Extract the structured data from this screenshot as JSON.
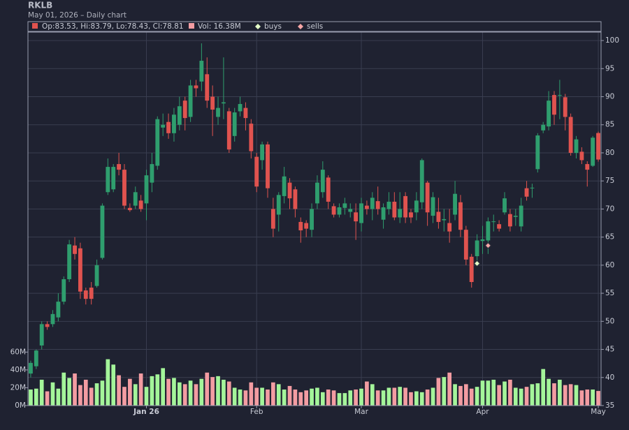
{
  "chart_data": {
    "type": "candlestick",
    "title": "RKLB",
    "subtitle": "May 01, 2026 – Daily chart",
    "legend": {
      "ohlc": "Op:83.53, Hi:83.79, Lo:78.43, Cl:78.81",
      "volume": "Vol: 16.38M",
      "buys": "buys",
      "sells": "sells"
    },
    "colors": {
      "up": "#2f9e6e",
      "down": "#e0534f",
      "volume_up": "#a4f59a",
      "volume_down": "#f39ca2",
      "buys": "#e4ffc8",
      "sells": "#f7a6a6"
    },
    "open": [
      40.7,
      42,
      45.7,
      49.5,
      49.5,
      50.7,
      53.5,
      57.5,
      63.5,
      63,
      55.5,
      56,
      56.3,
      61.3,
      73,
      73.5,
      78,
      77,
      70.2,
      70.6,
      71.5,
      71,
      74.7,
      77.7,
      84.5,
      85.5,
      83.5,
      85,
      89.3,
      86.4,
      92,
      92.7,
      94,
      90,
      86.4,
      88.8,
      87.4,
      83,
      87.4,
      88,
      85.2,
      79.3,
      78.7,
      81.5,
      70,
      69,
      72.3,
      74.7,
      73.5,
      67.7,
      67.5,
      66.3,
      71,
      73,
      75.6,
      70.5,
      69,
      70.2,
      69.5,
      69.4,
      67.5,
      70.6,
      70,
      71.4,
      68.1,
      70,
      71.3,
      68.5,
      72.3,
      69.4,
      69.4,
      71.2,
      74.7,
      68.8,
      69.5,
      68,
      67.5,
      69,
      71.2,
      66.3,
      61.5,
      61.6,
      64.3,
      64.4,
      67.7,
      67.3,
      69.4,
      69.1,
      68.6,
      66.9,
      73.7,
      73.7,
      77.1,
      84,
      84.7,
      90.3,
      90.2,
      89.9,
      86.4,
      80,
      80.2,
      78,
      77.7,
      83.53
    ],
    "high": [
      43,
      45,
      50,
      50,
      52,
      55,
      58,
      64.5,
      65,
      64,
      56,
      57,
      61,
      71,
      79,
      78,
      80,
      78,
      71,
      74,
      72.5,
      77,
      80,
      86.5,
      87,
      87,
      88,
      90,
      90,
      93,
      93,
      99.5,
      97,
      92,
      90,
      97,
      88,
      88,
      90,
      89,
      86,
      80,
      82,
      82,
      72,
      73,
      77.5,
      75.5,
      74,
      68.5,
      68,
      71,
      76,
      78.5,
      76,
      71,
      71,
      72,
      71,
      71,
      72,
      71.5,
      73,
      74,
      71,
      73,
      73,
      73,
      73,
      70,
      73,
      79,
      75,
      73,
      72,
      70,
      70,
      75,
      72.5,
      67,
      62,
      65.5,
      67,
      68.5,
      69,
      68,
      73,
      70,
      70,
      72,
      75,
      74.5,
      83.5,
      85.5,
      91,
      91,
      93,
      90.5,
      87,
      83,
      81,
      78.5,
      83,
      83.79
    ],
    "low": [
      40,
      41.5,
      45,
      48.5,
      49,
      50,
      53,
      57,
      61,
      54,
      53,
      53,
      56,
      61,
      72.5,
      73,
      76,
      70,
      69.5,
      70,
      69.5,
      68,
      73,
      77,
      83,
      82.5,
      82,
      84,
      84,
      85.5,
      90,
      91,
      88,
      83,
      85,
      86,
      80,
      82,
      86.5,
      84,
      79,
      73,
      77,
      72,
      65,
      66,
      71,
      70,
      68.5,
      64,
      65,
      65,
      70,
      72,
      70,
      68.5,
      68.5,
      69,
      68.5,
      64.5,
      66,
      69,
      68,
      69,
      66.5,
      69,
      68,
      67.5,
      67.5,
      67.5,
      68,
      70,
      67,
      67.5,
      66.5,
      66,
      64,
      68,
      65,
      60,
      56,
      60.5,
      62,
      62,
      66,
      66,
      69,
      66,
      67,
      66,
      71.5,
      72,
      76.5,
      83.5,
      84,
      85,
      86,
      84,
      79.5,
      79,
      78,
      74,
      77.5,
      78.43
    ],
    "close": [
      42.6,
      44.8,
      49.5,
      49,
      51.3,
      53.5,
      57.5,
      63.7,
      62,
      55.3,
      54,
      54,
      60,
      70.6,
      77.5,
      77.5,
      77,
      70.6,
      69.8,
      73,
      70,
      76,
      78,
      86,
      85,
      83.5,
      86.8,
      88.3,
      86.2,
      92,
      91.5,
      96.4,
      89.3,
      87.7,
      88,
      89,
      80.6,
      87.2,
      88.7,
      86.2,
      80.3,
      74,
      81.5,
      73.7,
      66.5,
      72.5,
      75.8,
      71.9,
      70,
      66.2,
      66.5,
      70,
      74.7,
      77,
      71.3,
      69,
      70.3,
      71,
      70,
      67.8,
      71,
      70,
      72,
      70,
      70.3,
      71.3,
      68.5,
      70,
      68.5,
      68.5,
      71.5,
      78.7,
      69.4,
      72.1,
      67.7,
      68.2,
      66,
      72.7,
      66.3,
      61,
      57,
      64.4,
      64.6,
      67.8,
      67.8,
      66.5,
      71.9,
      66.9,
      68.8,
      70.6,
      72.2,
      73.8,
      83.1,
      85,
      89.3,
      86.8,
      90.3,
      86.4,
      80,
      82.4,
      78.7,
      77,
      82.7,
      78.81
    ],
    "volume": [
      18,
      19,
      29,
      16,
      26,
      19,
      37,
      31,
      36,
      23,
      29,
      20,
      25,
      28,
      52,
      46,
      34,
      21,
      30,
      24,
      36,
      21,
      33,
      35,
      42,
      30,
      31,
      26,
      24,
      28,
      24,
      30,
      37,
      32,
      33,
      29,
      27,
      20,
      18,
      17,
      26,
      20,
      20,
      18,
      26,
      24,
      18,
      22,
      18,
      15,
      17,
      19,
      20,
      15,
      18,
      17,
      14,
      14,
      17,
      18,
      19,
      27,
      24,
      17,
      17,
      20,
      20,
      21,
      20,
      15,
      16,
      15,
      18,
      20,
      31,
      32,
      37,
      24,
      22,
      24,
      19,
      21,
      28,
      28,
      29,
      23,
      27,
      29,
      20,
      19,
      21,
      24,
      25,
      41,
      30,
      25,
      29,
      23,
      24,
      23,
      17,
      18,
      18,
      16.38
    ],
    "buys": [
      {
        "index": 81,
        "value": 60.3
      }
    ],
    "sells": [
      {
        "index": 83,
        "value": 63.5
      }
    ],
    "xlim": [
      -0.5,
      103.5
    ],
    "xticks": [
      {
        "value": 21,
        "label": "Jan 26"
      },
      {
        "value": 41,
        "label": "Feb"
      },
      {
        "value": 60,
        "label": "Mar"
      },
      {
        "value": 82,
        "label": "Apr"
      },
      {
        "value": 103,
        "label": "May"
      }
    ],
    "ylim": [
      35,
      101.5
    ],
    "yticks": [
      35,
      40,
      45,
      50,
      55,
      60,
      65,
      70,
      75,
      80,
      85,
      90,
      95,
      100
    ],
    "volume_ylim": [
      0,
      419
    ],
    "volume_ticks": [
      {
        "value": 0,
        "label": "0M"
      },
      {
        "value": 20,
        "label": "20M"
      },
      {
        "value": 40,
        "label": "40M"
      },
      {
        "value": 60,
        "label": "60M"
      }
    ],
    "grid": true
  }
}
